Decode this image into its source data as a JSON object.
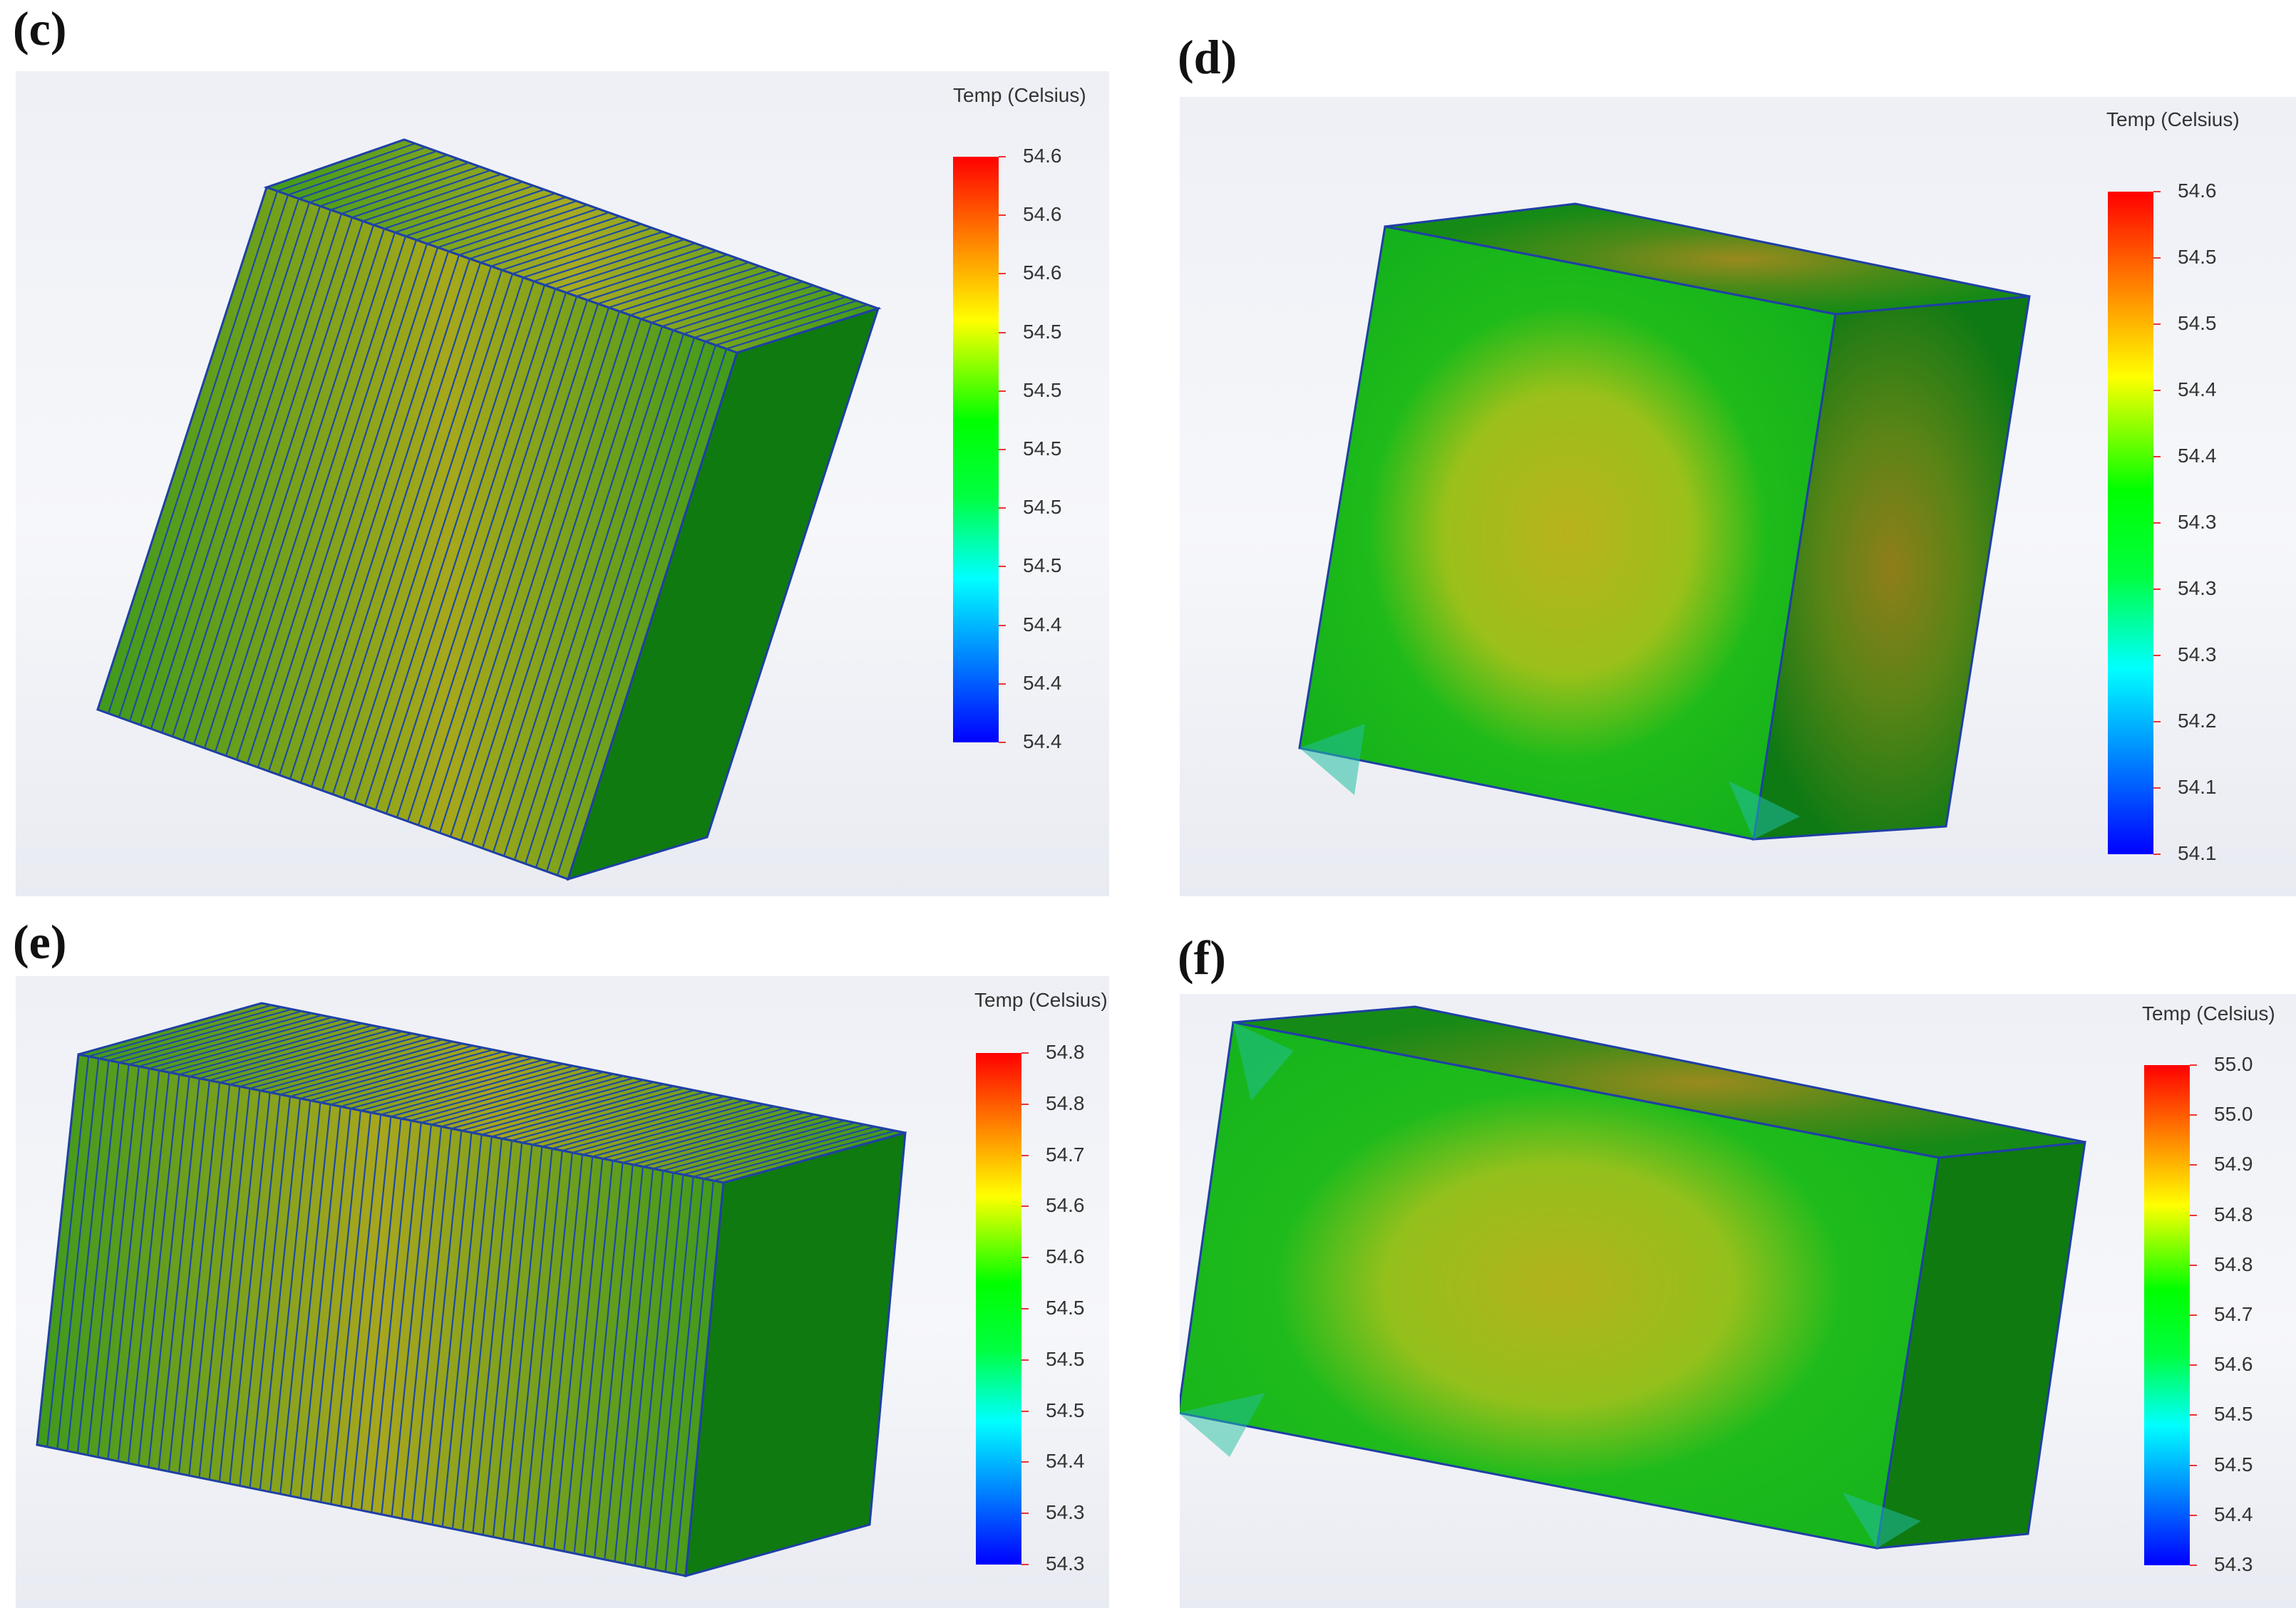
{
  "panels": [
    {
      "id": "c",
      "label": "(c)",
      "legend": {
        "title": "Temp (Celsius)",
        "values": [
          "54.6",
          "54.6",
          "54.6",
          "54.5",
          "54.5",
          "54.5",
          "54.5",
          "54.5",
          "54.4",
          "54.4",
          "54.4"
        ]
      }
    },
    {
      "id": "d",
      "label": "(d)",
      "legend": {
        "title": "Temp (Celsius)",
        "values": [
          "54.6",
          "54.5",
          "54.5",
          "54.4",
          "54.4",
          "54.3",
          "54.3",
          "54.3",
          "54.2",
          "54.1",
          "54.1"
        ]
      }
    },
    {
      "id": "e",
      "label": "(e)",
      "legend": {
        "title": "Temp (Celsius)",
        "values": [
          "54.8",
          "54.8",
          "54.7",
          "54.6",
          "54.6",
          "54.5",
          "54.5",
          "54.5",
          "54.4",
          "54.3",
          "54.3"
        ]
      }
    },
    {
      "id": "f",
      "label": "(f)",
      "legend": {
        "title": "Temp (Celsius)",
        "values": [
          "55.0",
          "55.0",
          "54.9",
          "54.8",
          "54.8",
          "54.7",
          "54.6",
          "54.5",
          "54.5",
          "54.4",
          "54.3"
        ]
      }
    }
  ]
}
